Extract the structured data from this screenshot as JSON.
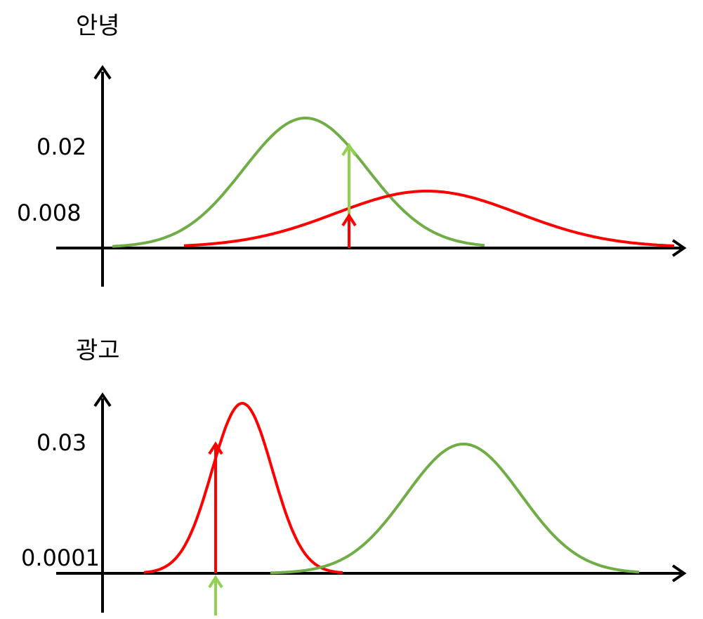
{
  "panels": [
    {
      "title": "안녕",
      "labels": [
        "0.02",
        "0.008"
      ],
      "colors": {
        "green": "#70ad47",
        "red": "#ff0000",
        "light_green": "#92d050",
        "axis": "#000000"
      }
    },
    {
      "title": "광고",
      "labels": [
        "0.03",
        "0.0001"
      ],
      "colors": {
        "green": "#70ad47",
        "red": "#ff0000",
        "light_green": "#92d050",
        "axis": "#000000"
      }
    }
  ]
}
